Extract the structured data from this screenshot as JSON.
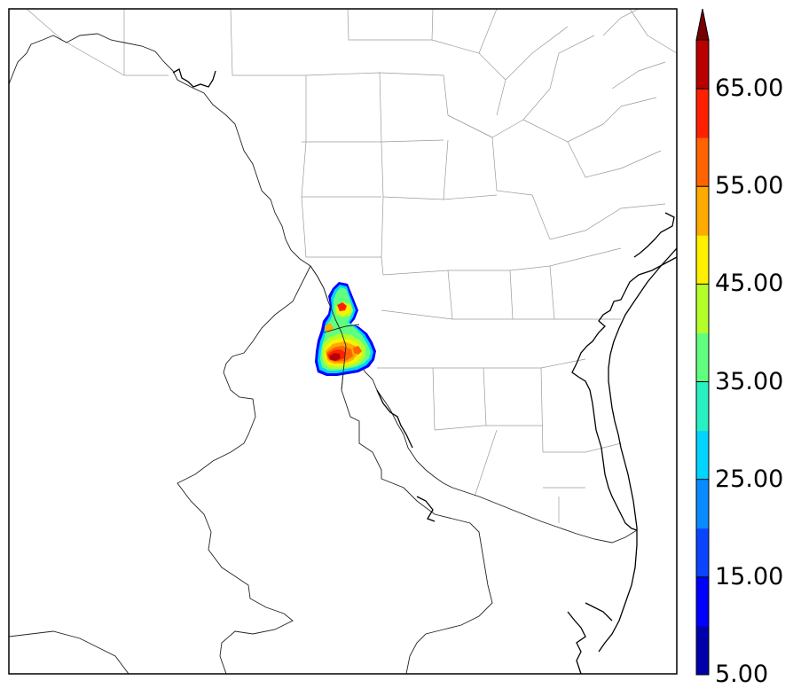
{
  "map": {
    "type": "filled-contour radar reflectivity overlay",
    "basemap": "county and coastline outlines",
    "frame": true
  },
  "colorbar": {
    "orientation": "vertical",
    "extend": "max",
    "ticks": [
      "5.00",
      "15.00",
      "25.00",
      "35.00",
      "45.00",
      "55.00",
      "65.00"
    ],
    "levels": [
      5,
      10,
      15,
      20,
      25,
      30,
      35,
      40,
      45,
      50,
      55,
      60,
      65,
      70
    ],
    "colors": [
      "#0000aa",
      "#0000ff",
      "#0a44ff",
      "#0a8aff",
      "#00d4ff",
      "#28f0c0",
      "#60ff80",
      "#b4ff2a",
      "#fff000",
      "#ffaa00",
      "#ff6400",
      "#ff2000",
      "#b80000"
    ],
    "over_color": "#780000"
  },
  "storm": {
    "contour_colors": [
      "#0000ff",
      "#00d4ff",
      "#60ff80",
      "#b4ff2a",
      "#fff000",
      "#ffaa00",
      "#ff6400",
      "#ff2000",
      "#b80000"
    ]
  }
}
